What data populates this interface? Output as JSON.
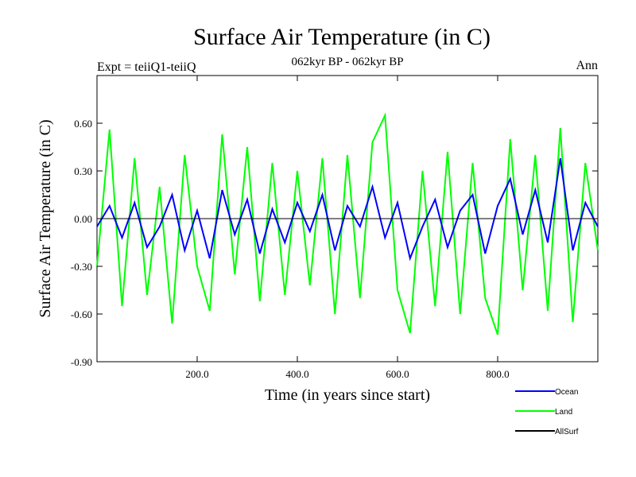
{
  "chart_data": {
    "type": "line",
    "title": "Surface Air Temperature (in C)",
    "subtitle": "062kyr BP - 062kyr BP",
    "expt_label": "Expt = teiiQ1-teiiQ",
    "season_label": "Ann",
    "xlabel": "Time (in years since start)",
    "ylabel": "Surface Air Temperature (in C)",
    "xlim": [
      0,
      1000
    ],
    "ylim": [
      -0.9,
      0.9
    ],
    "x_ticks": [
      200,
      400,
      600,
      800
    ],
    "x_tick_labels": [
      "200.0",
      "400.0",
      "600.0",
      "800.0"
    ],
    "y_ticks": [
      -0.9,
      -0.6,
      -0.3,
      0.0,
      0.3,
      0.6
    ],
    "y_tick_labels": [
      "-0.90",
      "-0.60",
      "-0.30",
      "0.00",
      "0.30",
      "0.60"
    ],
    "zero_line": true,
    "grid": false,
    "legend_position": "bottom-right",
    "series": [
      {
        "name": "Ocean",
        "color": "#0000ff",
        "x": [
          0,
          25,
          50,
          75,
          100,
          125,
          150,
          175,
          200,
          225,
          250,
          275,
          300,
          325,
          350,
          375,
          400,
          425,
          450,
          475,
          500,
          525,
          550,
          575,
          600,
          625,
          650,
          675,
          700,
          725,
          750,
          775,
          800,
          825,
          850,
          875,
          900,
          925,
          950,
          975,
          1000
        ],
        "values": [
          -0.05,
          0.08,
          -0.12,
          0.1,
          -0.18,
          -0.05,
          0.15,
          -0.2,
          0.05,
          -0.25,
          0.18,
          -0.1,
          0.12,
          -0.22,
          0.06,
          -0.15,
          0.1,
          -0.08,
          0.15,
          -0.2,
          0.08,
          -0.05,
          0.2,
          -0.12,
          0.1,
          -0.25,
          -0.05,
          0.12,
          -0.18,
          0.05,
          0.15,
          -0.22,
          0.08,
          0.25,
          -0.1,
          0.18,
          -0.15,
          0.38,
          -0.2,
          0.1,
          -0.05
        ]
      },
      {
        "name": "Land",
        "color": "#00ff00",
        "x": [
          0,
          25,
          50,
          75,
          100,
          125,
          150,
          175,
          200,
          225,
          250,
          275,
          300,
          325,
          350,
          375,
          400,
          425,
          450,
          475,
          500,
          525,
          550,
          575,
          600,
          625,
          650,
          675,
          700,
          725,
          750,
          775,
          800,
          825,
          850,
          875,
          900,
          925,
          950,
          975,
          1000
        ],
        "values": [
          -0.3,
          0.56,
          -0.55,
          0.38,
          -0.48,
          0.2,
          -0.66,
          0.4,
          -0.3,
          -0.58,
          0.53,
          -0.35,
          0.45,
          -0.52,
          0.35,
          -0.48,
          0.3,
          -0.42,
          0.38,
          -0.6,
          0.4,
          -0.5,
          0.48,
          0.65,
          -0.45,
          -0.72,
          0.3,
          -0.55,
          0.42,
          -0.6,
          0.35,
          -0.5,
          -0.73,
          0.5,
          -0.45,
          0.4,
          -0.58,
          0.57,
          -0.65,
          0.35,
          -0.2
        ]
      },
      {
        "name": "AllSurf",
        "color": "#000000",
        "x": [],
        "values": []
      }
    ]
  }
}
